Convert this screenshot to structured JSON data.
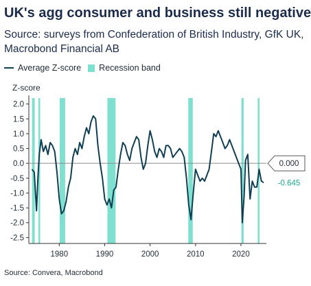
{
  "header": {
    "title": "UK's agg consumer and business still negative",
    "subtitle": "Source: surveys from Confederation of British Industry, GfK UK, Macrobond Financial AB"
  },
  "footer": {
    "source": "Source: Convera, Macrobond"
  },
  "colors": {
    "line": "#0f3e52",
    "band": "#7fe0d0",
    "zero_line": "#8a8a8a",
    "callout_text": "#1aa890"
  },
  "chart_data": {
    "type": "line",
    "ylabel": "Z-score",
    "ylim": [
      -2.7,
      2.2
    ],
    "xlim": [
      1973.3,
      2025.6
    ],
    "y_ticks": [
      2.0,
      1.5,
      1.0,
      0.5,
      0.0,
      -0.5,
      -1.0,
      -1.5,
      -2.0,
      -2.5
    ],
    "y_tick_labels": [
      "2.0",
      "1.5",
      "1.0",
      "0.5",
      "0.0",
      "-0.5",
      "-1.0",
      "-1.5",
      "-2.0",
      "-2.5"
    ],
    "x_ticks": [
      1980,
      1990,
      2000,
      2010,
      2020
    ],
    "x_tick_labels": [
      "1980",
      "1990",
      "2000",
      "2010",
      "2020"
    ],
    "grid": false,
    "legend": [
      "Average Z-score",
      "Recession band"
    ],
    "legend_position": "top-left",
    "recession_bands": [
      [
        1974.0,
        1974.6
      ],
      [
        1975.4,
        1975.8
      ],
      [
        1980.1,
        1981.3
      ],
      [
        1990.6,
        1992.4
      ],
      [
        2008.4,
        2009.4
      ],
      [
        2020.1,
        2020.6
      ],
      [
        2023.7,
        2024.1
      ]
    ],
    "callouts": {
      "zero_label": "0.000",
      "last_value_label": "-0.645"
    },
    "series": [
      {
        "name": "Average Z-score",
        "x": [
          1974.0,
          1974.5,
          1975.0,
          1975.3,
          1975.6,
          1976.0,
          1976.5,
          1977.0,
          1977.5,
          1978.0,
          1978.5,
          1979.0,
          1979.5,
          1980.0,
          1980.5,
          1981.0,
          1981.5,
          1982.0,
          1982.5,
          1983.0,
          1983.5,
          1984.0,
          1984.5,
          1985.0,
          1985.5,
          1986.0,
          1986.5,
          1987.0,
          1987.5,
          1988.0,
          1988.5,
          1989.0,
          1989.5,
          1990.0,
          1990.5,
          1991.0,
          1991.5,
          1992.0,
          1992.5,
          1993.0,
          1993.5,
          1994.0,
          1994.5,
          1995.0,
          1995.5,
          1996.0,
          1996.5,
          1997.0,
          1997.5,
          1998.0,
          1998.5,
          1999.0,
          1999.5,
          2000.0,
          2000.5,
          2001.0,
          2001.5,
          2002.0,
          2002.5,
          2003.0,
          2003.5,
          2004.0,
          2004.5,
          2005.0,
          2005.5,
          2006.0,
          2006.5,
          2007.0,
          2007.5,
          2008.0,
          2008.5,
          2009.0,
          2009.5,
          2010.0,
          2010.5,
          2011.0,
          2011.5,
          2012.0,
          2012.5,
          2013.0,
          2013.5,
          2014.0,
          2014.5,
          2015.0,
          2015.5,
          2016.0,
          2016.5,
          2017.0,
          2017.5,
          2018.0,
          2018.5,
          2019.0,
          2019.5,
          2020.0,
          2020.3,
          2020.7,
          2021.0,
          2021.5,
          2022.0,
          2022.5,
          2023.0,
          2023.5,
          2024.0,
          2024.5,
          2025.0
        ],
        "y": [
          -0.2,
          -0.3,
          -1.6,
          -0.5,
          0.3,
          0.8,
          0.4,
          0.6,
          0.3,
          0.7,
          0.6,
          0.4,
          -0.3,
          -1.2,
          -1.7,
          -1.6,
          -1.3,
          -0.8,
          -0.5,
          0.2,
          0.5,
          0.3,
          0.7,
          0.5,
          0.9,
          1.2,
          1.0,
          1.4,
          1.6,
          1.5,
          0.6,
          0.0,
          -0.5,
          -1.2,
          -1.4,
          -1.2,
          -1.5,
          -0.9,
          -0.8,
          -0.2,
          0.3,
          0.7,
          0.6,
          0.3,
          0.1,
          0.5,
          0.7,
          0.9,
          0.8,
          0.2,
          -0.2,
          0.0,
          0.6,
          1.1,
          0.8,
          0.4,
          0.2,
          0.5,
          0.4,
          0.2,
          0.6,
          0.6,
          0.5,
          0.2,
          0.3,
          0.4,
          0.5,
          0.4,
          0.2,
          -0.5,
          -1.4,
          -1.9,
          -1.0,
          -0.2,
          -0.4,
          -0.6,
          -0.5,
          -0.6,
          -0.4,
          -0.2,
          0.4,
          1.0,
          0.9,
          1.1,
          0.9,
          0.7,
          0.5,
          0.6,
          0.8,
          0.6,
          0.4,
          0.2,
          0.0,
          -0.2,
          -2.0,
          -1.1,
          0.1,
          0.3,
          -1.2,
          -0.6,
          -0.8,
          -0.8,
          -0.2,
          -0.6,
          -0.65
        ]
      }
    ]
  }
}
